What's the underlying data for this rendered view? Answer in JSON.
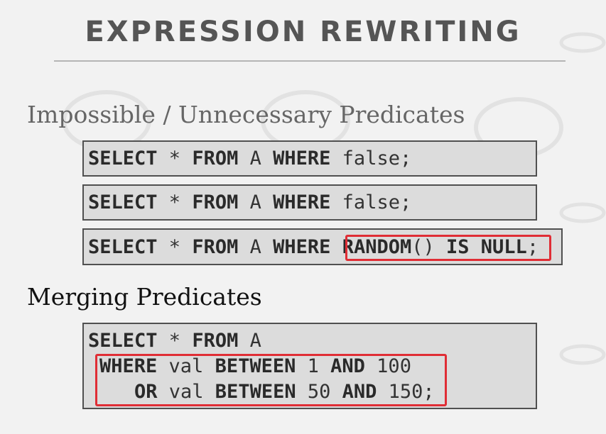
{
  "title": "EXPRESSION REWRITING",
  "section1": {
    "heading": "Impossible / Unnecessary Predicates",
    "q1": {
      "kw1": "SELECT",
      "t1": " * ",
      "kw2": "FROM",
      "t2": " A ",
      "kw3": "WHERE",
      "t3": " false;"
    },
    "q2": {
      "kw1": "SELECT",
      "t1": " * ",
      "kw2": "FROM",
      "t2": " A ",
      "kw3": "WHERE",
      "t3": " false;"
    },
    "q3": {
      "kw1": "SELECT",
      "t1": " * ",
      "kw2": "FROM",
      "t2": " A ",
      "kw3": "WHERE",
      "t3": " ",
      "kw4": "RANDOM",
      "t4": "() ",
      "kw5": "IS NULL",
      "t5": ";"
    }
  },
  "section2": {
    "heading": "Merging Predicates",
    "q": {
      "l1": {
        "kw1": "SELECT",
        "t1": " * ",
        "kw2": "FROM",
        "t2": " A"
      },
      "l2": {
        "kw1": "WHERE",
        "t1": " val ",
        "kw2": "BETWEEN",
        "t2": " 1 ",
        "kw3": "AND",
        "t3": " 100"
      },
      "l3": {
        "kw1": "OR",
        "t1": " val ",
        "kw2": "BETWEEN",
        "t2": " 50 ",
        "kw3": "AND",
        "t3": " 150;"
      }
    }
  },
  "colors": {
    "highlight": "#e02d35",
    "box_bg": "#dcdcdc",
    "page_bg": "#f2f2f2"
  }
}
